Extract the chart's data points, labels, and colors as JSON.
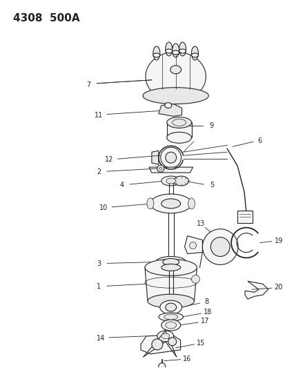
{
  "title": "4308  500A",
  "bg": "#ffffff",
  "lc": "#222222",
  "fig_w": 4.14,
  "fig_h": 5.33,
  "dpi": 100
}
